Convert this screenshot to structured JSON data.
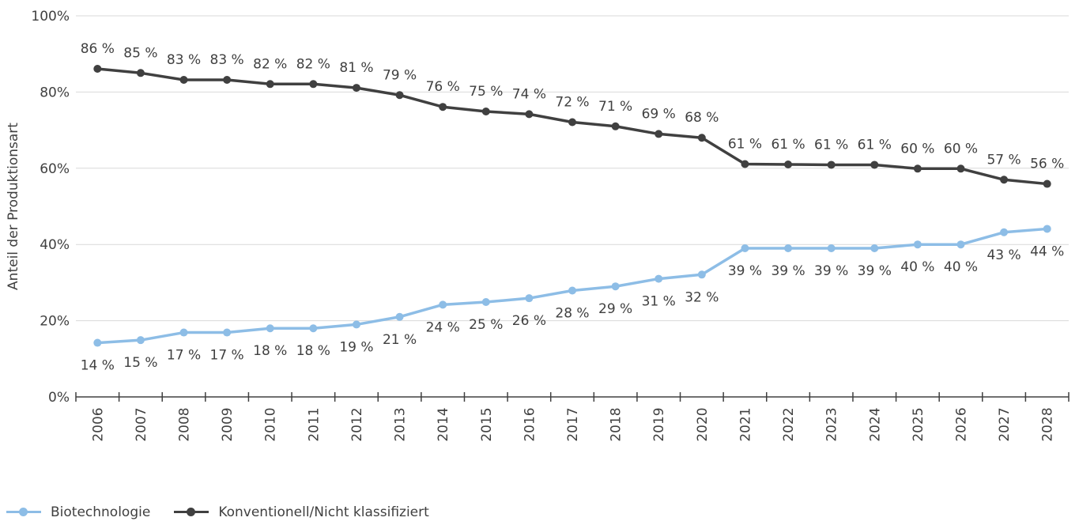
{
  "chart_data": {
    "type": "line",
    "ylabel": "Anteil der Produktionsart",
    "xlabel": "",
    "ylim": [
      0,
      100
    ],
    "yticks": [
      "0%",
      "20%",
      "40%",
      "60%",
      "80%",
      "100%"
    ],
    "grid": true,
    "legend_position": "bottom-left",
    "categories": [
      "2006",
      "2007",
      "2008",
      "2009",
      "2010",
      "2011",
      "2012",
      "2013",
      "2014",
      "2015",
      "2016",
      "2017",
      "2018",
      "2019",
      "2020",
      "2021",
      "2022",
      "2023",
      "2024",
      "2025",
      "2026",
      "2027",
      "2028"
    ],
    "series": [
      {
        "name": "Biotechnologie",
        "color": "#8dbde6",
        "values": [
          14.2,
          14.9,
          16.9,
          16.9,
          18.0,
          18.0,
          19.0,
          21.0,
          24.2,
          24.9,
          25.9,
          27.9,
          29.0,
          31.0,
          32.1,
          39.0,
          39.0,
          39.0,
          39.0,
          40.0,
          40.0,
          43.2,
          44.1
        ],
        "labels": [
          "14 %",
          "15 %",
          "17 %",
          "17 %",
          "18 %",
          "18 %",
          "19 %",
          "21 %",
          "24 %",
          "25 %",
          "26 %",
          "28 %",
          "29 %",
          "31 %",
          "32 %",
          "39 %",
          "39 %",
          "39 %",
          "39 %",
          "40 %",
          "40 %",
          "43 %",
          "44 %"
        ]
      },
      {
        "name": "Konventionell/Nicht klassifiziert",
        "color": "#404040",
        "values": [
          86.1,
          85.0,
          83.2,
          83.2,
          82.1,
          82.1,
          81.1,
          79.2,
          76.1,
          74.9,
          74.2,
          72.1,
          71.0,
          69.0,
          68.0,
          61.1,
          61.0,
          60.9,
          60.9,
          59.9,
          59.9,
          57.0,
          55.9
        ],
        "labels": [
          "86 %",
          "85 %",
          "83 %",
          "83 %",
          "82 %",
          "82 %",
          "81 %",
          "79 %",
          "76 %",
          "75 %",
          "74 %",
          "72 %",
          "71 %",
          "69 %",
          "68 %",
          "61 %",
          "61 %",
          "61 %",
          "61 %",
          "60 %",
          "60 %",
          "57 %",
          "56 %"
        ]
      }
    ]
  }
}
